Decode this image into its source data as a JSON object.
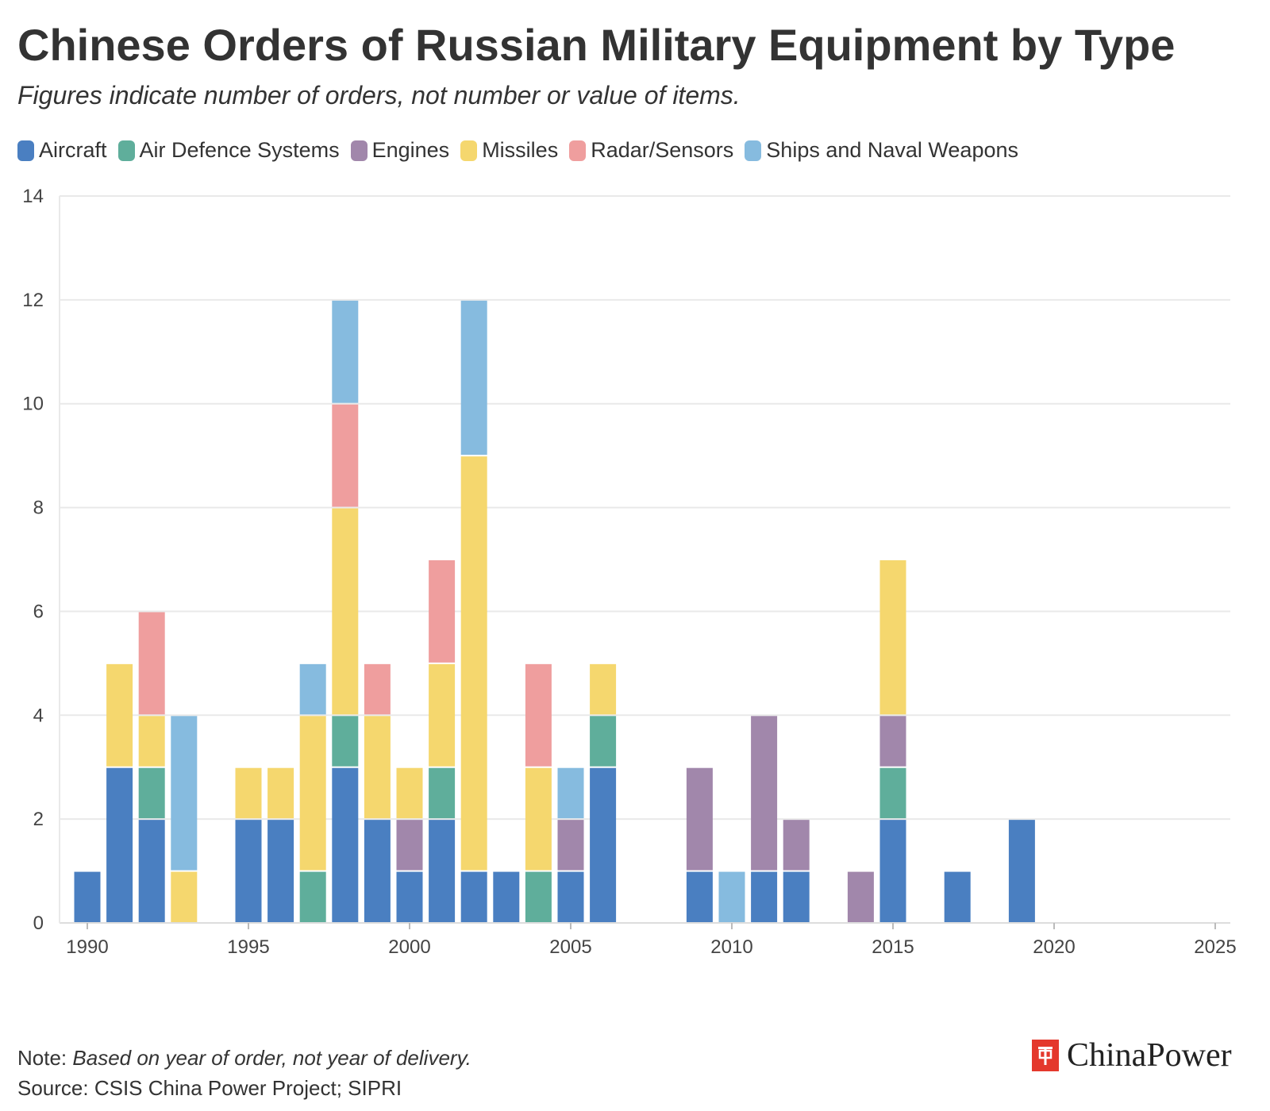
{
  "title": "Chinese Orders of Russian Military Equipment by Type",
  "subtitle": "Figures indicate number of orders, not number or value of items.",
  "note_label": "Note:",
  "note_text": "Based on year of order, not year of delivery.",
  "source": "Source: CSIS China Power Project; SIPRI",
  "logo_text": "ChinaPower",
  "chart_data": {
    "type": "bar",
    "stacked": true,
    "x_ticks": [
      "1990",
      "1995",
      "2000",
      "2005",
      "2010",
      "2015",
      "2020",
      "2025"
    ],
    "y_ticks": [
      "0",
      "2",
      "4",
      "6",
      "8",
      "10",
      "12",
      "14"
    ],
    "xlim": [
      1990,
      2025
    ],
    "ylim": [
      0,
      14
    ],
    "grid": true,
    "legend_position": "top-left",
    "x": [
      1990,
      1991,
      1992,
      1993,
      1995,
      1996,
      1997,
      1998,
      1999,
      2000,
      2001,
      2002,
      2003,
      2004,
      2005,
      2006,
      2009,
      2010,
      2011,
      2012,
      2014,
      2015,
      2017,
      2019
    ],
    "series": [
      {
        "name": "Aircraft",
        "color": "#4a7fc1",
        "values": [
          1,
          3,
          2,
          0,
          2,
          2,
          0,
          3,
          2,
          1,
          2,
          1,
          1,
          0,
          1,
          3,
          1,
          0,
          1,
          1,
          0,
          2,
          1,
          2
        ]
      },
      {
        "name": "Air Defence Systems",
        "color": "#5fae9b",
        "values": [
          0,
          0,
          1,
          0,
          0,
          0,
          1,
          1,
          0,
          0,
          1,
          0,
          0,
          1,
          0,
          1,
          0,
          0,
          0,
          0,
          0,
          1,
          0,
          0
        ]
      },
      {
        "name": "Engines",
        "color": "#a187ab",
        "values": [
          0,
          0,
          0,
          0,
          0,
          0,
          0,
          0,
          0,
          1,
          0,
          0,
          0,
          0,
          1,
          0,
          2,
          0,
          3,
          1,
          1,
          1,
          0,
          0
        ]
      },
      {
        "name": "Missiles",
        "color": "#f5d76e",
        "values": [
          0,
          2,
          1,
          1,
          1,
          1,
          3,
          4,
          2,
          1,
          2,
          8,
          0,
          2,
          0,
          1,
          0,
          0,
          0,
          0,
          0,
          3,
          0,
          0
        ]
      },
      {
        "name": "Radar/Sensors",
        "color": "#ef9e9e",
        "values": [
          0,
          0,
          2,
          0,
          0,
          0,
          0,
          2,
          1,
          0,
          2,
          0,
          0,
          2,
          0,
          0,
          0,
          0,
          0,
          0,
          0,
          0,
          0,
          0
        ]
      },
      {
        "name": "Ships and Naval Weapons",
        "color": "#86bbdf",
        "values": [
          0,
          0,
          0,
          3,
          0,
          0,
          1,
          2,
          0,
          0,
          0,
          3,
          0,
          0,
          1,
          0,
          0,
          1,
          0,
          0,
          0,
          0,
          0,
          0
        ]
      }
    ]
  }
}
